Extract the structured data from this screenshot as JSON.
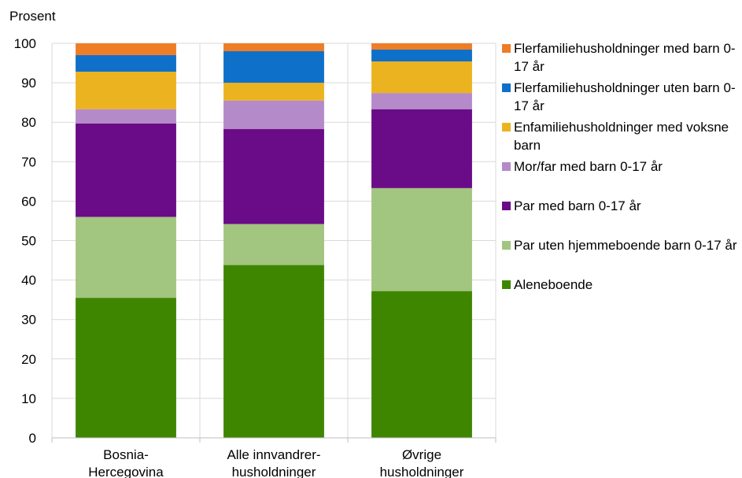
{
  "chart_data": {
    "type": "bar",
    "stacked": true,
    "ylabel": "Prosent",
    "ylim": [
      0,
      100
    ],
    "yticks": [
      0,
      10,
      20,
      30,
      40,
      50,
      60,
      70,
      80,
      90,
      100
    ],
    "grid": true,
    "legend_position": "right",
    "categories": [
      [
        "Bosnia-",
        "Hercegovina"
      ],
      [
        "Alle innvandrer-",
        "husholdninger"
      ],
      [
        "Øvrige",
        "husholdninger"
      ]
    ],
    "series": [
      {
        "name": "Aleneboende",
        "color": "#3f8600",
        "values": [
          35.5,
          43.8,
          37.2
        ]
      },
      {
        "name": "Par uten hjemmeboende barn 0-17 år",
        "color": "#a2c57f",
        "values": [
          20.5,
          10.4,
          26.1
        ]
      },
      {
        "name": "Par med barn 0-17 år",
        "color": "#6a0b87",
        "values": [
          23.7,
          24.1,
          20.0
        ]
      },
      {
        "name": "Mor/far med barn 0-17 år",
        "color": "#b58ac9",
        "values": [
          3.6,
          7.2,
          4.1
        ]
      },
      {
        "name": "Enfamiliehusholdninger med voksne barn",
        "color": "#ecb320",
        "values": [
          9.5,
          4.5,
          8.0
        ]
      },
      {
        "name": "Flerfamiliehusholdninger uten barn 0-17 år",
        "color": "#0f70c9",
        "values": [
          4.2,
          8.0,
          3.0
        ]
      },
      {
        "name": "Flerfamiliehusholdninger med barn 0-17 år",
        "color": "#ee7d26",
        "values": [
          3.0,
          2.0,
          1.6
        ]
      }
    ]
  }
}
